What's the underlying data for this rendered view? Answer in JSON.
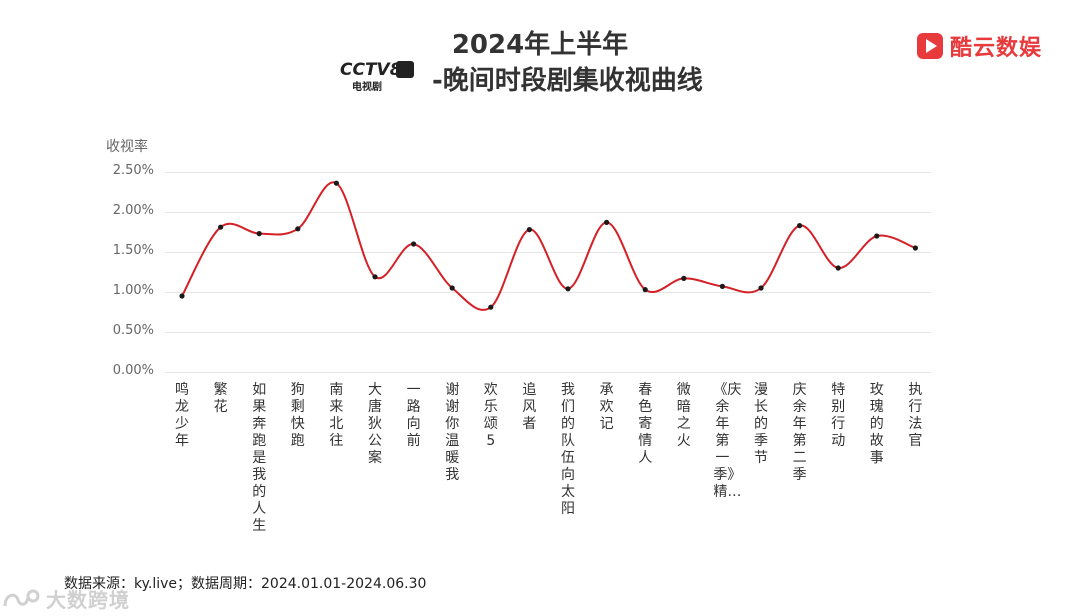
{
  "header": {
    "title_line1": "2024年上半年",
    "title_line2": "-晚间时段剧集收视曲线",
    "channel_logo_text": "CCTV8",
    "channel_logo_sub": "电视剧"
  },
  "brand": {
    "name": "酷云数娱",
    "color": "#e8393c"
  },
  "footer": {
    "source": "数据来源：ky.live；数据周期：2024.01.01-2024.06.30"
  },
  "watermark": {
    "text": "大数跨境"
  },
  "chart_data": {
    "type": "line",
    "ylabel": "收视率",
    "xlabel": "",
    "ylim": [
      0,
      2.5
    ],
    "yticks": [
      "0.00%",
      "0.50%",
      "1.00%",
      "1.50%",
      "2.00%",
      "2.50%"
    ],
    "grid": true,
    "smooth": true,
    "line_color": "#d42026",
    "categories": [
      "鸣龙少年",
      "繁花",
      "如果奔跑是我的人生",
      "狗剩快跑",
      "南来北往",
      "大唐狄公案",
      "一路向前",
      "谢谢你温暖我",
      "欢乐颂5",
      "追风者",
      "我们的队伍向太阳",
      "承欢记",
      "春色寄情人",
      "微暗之火",
      "《庆余年第一季》精…",
      "漫长的季节",
      "庆余年第二季",
      "特别行动",
      "玫瑰的故事",
      "执行法官"
    ],
    "values": [
      0.95,
      1.81,
      1.73,
      1.79,
      2.36,
      1.19,
      1.6,
      1.05,
      0.81,
      1.78,
      1.04,
      1.87,
      1.03,
      1.17,
      1.07,
      1.05,
      1.83,
      1.3,
      1.7,
      1.55
    ]
  }
}
